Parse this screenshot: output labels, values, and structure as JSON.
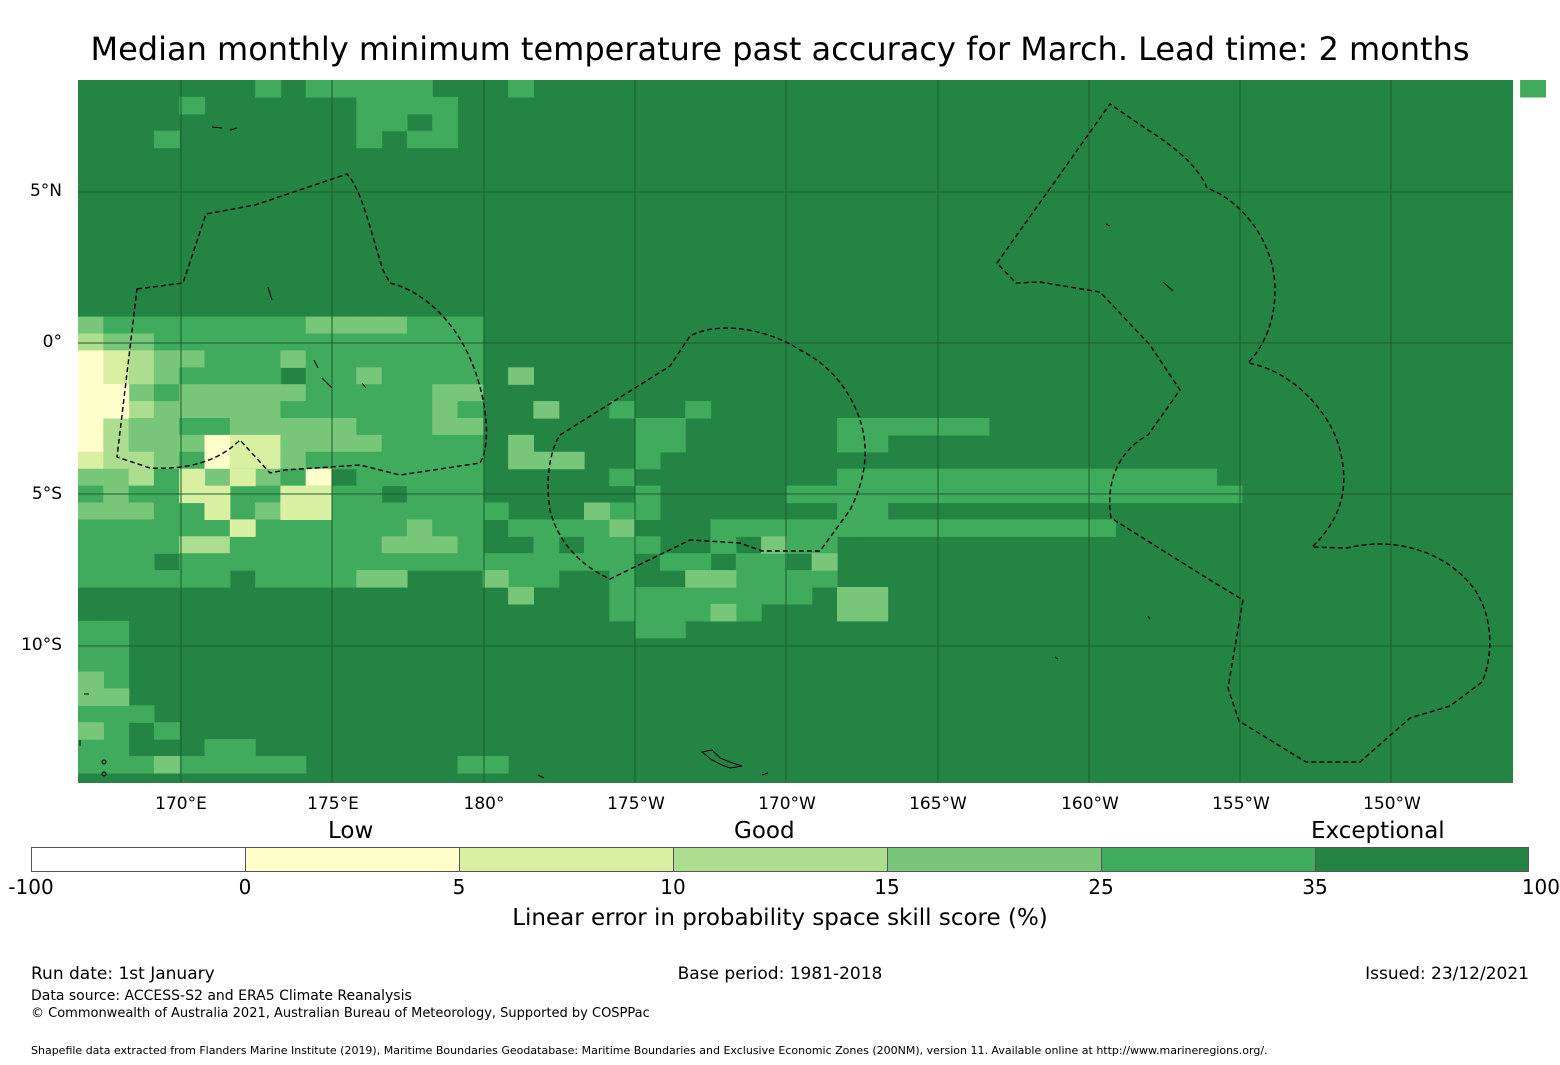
{
  "title": "Median monthly minimum temperature past accuracy for March. Lead time: 2 months",
  "map": {
    "region": "Central Pacific",
    "lat_labels": [
      "5°N",
      "0°",
      "5°S",
      "10°S"
    ],
    "lon_labels": [
      "170°E",
      "175°E",
      "180°",
      "175°W",
      "170°W",
      "165°W",
      "160°W",
      "155°W",
      "150°W"
    ],
    "ocean_color": "#238443",
    "boundary_color": "#000000"
  },
  "legend": {
    "categories": [
      "Low",
      "Good",
      "Exceptional"
    ],
    "ticks": [
      "-100",
      "0",
      "5",
      "10",
      "15",
      "25",
      "35",
      "100"
    ],
    "colors": [
      "#ffffff",
      "#ffffcc",
      "#d9f0a3",
      "#addd8e",
      "#78c679",
      "#41ab5d",
      "#238443"
    ],
    "title": "Linear error in probability space skill score (%)"
  },
  "footer": {
    "run_date": "Run date: 1st January",
    "base_period": "Base period: 1981-2018",
    "issued": "Issued: 23/12/2021",
    "data_source": "Data source: ACCESS-S2 and ERA5 Climate Reanalysis",
    "copyright": "© Commonwealth of Australia 2021, Australian Bureau of Meteorology, Supported by COSPPac",
    "shapefile": "Shapefile data extracted from Flanders Marine Institute (2019), Maritime Boundaries Geodatabase: Maritime Boundaries and Exclusive Economic Zones (200NM), version 11. Available online at http://www.marineregions.org/."
  }
}
